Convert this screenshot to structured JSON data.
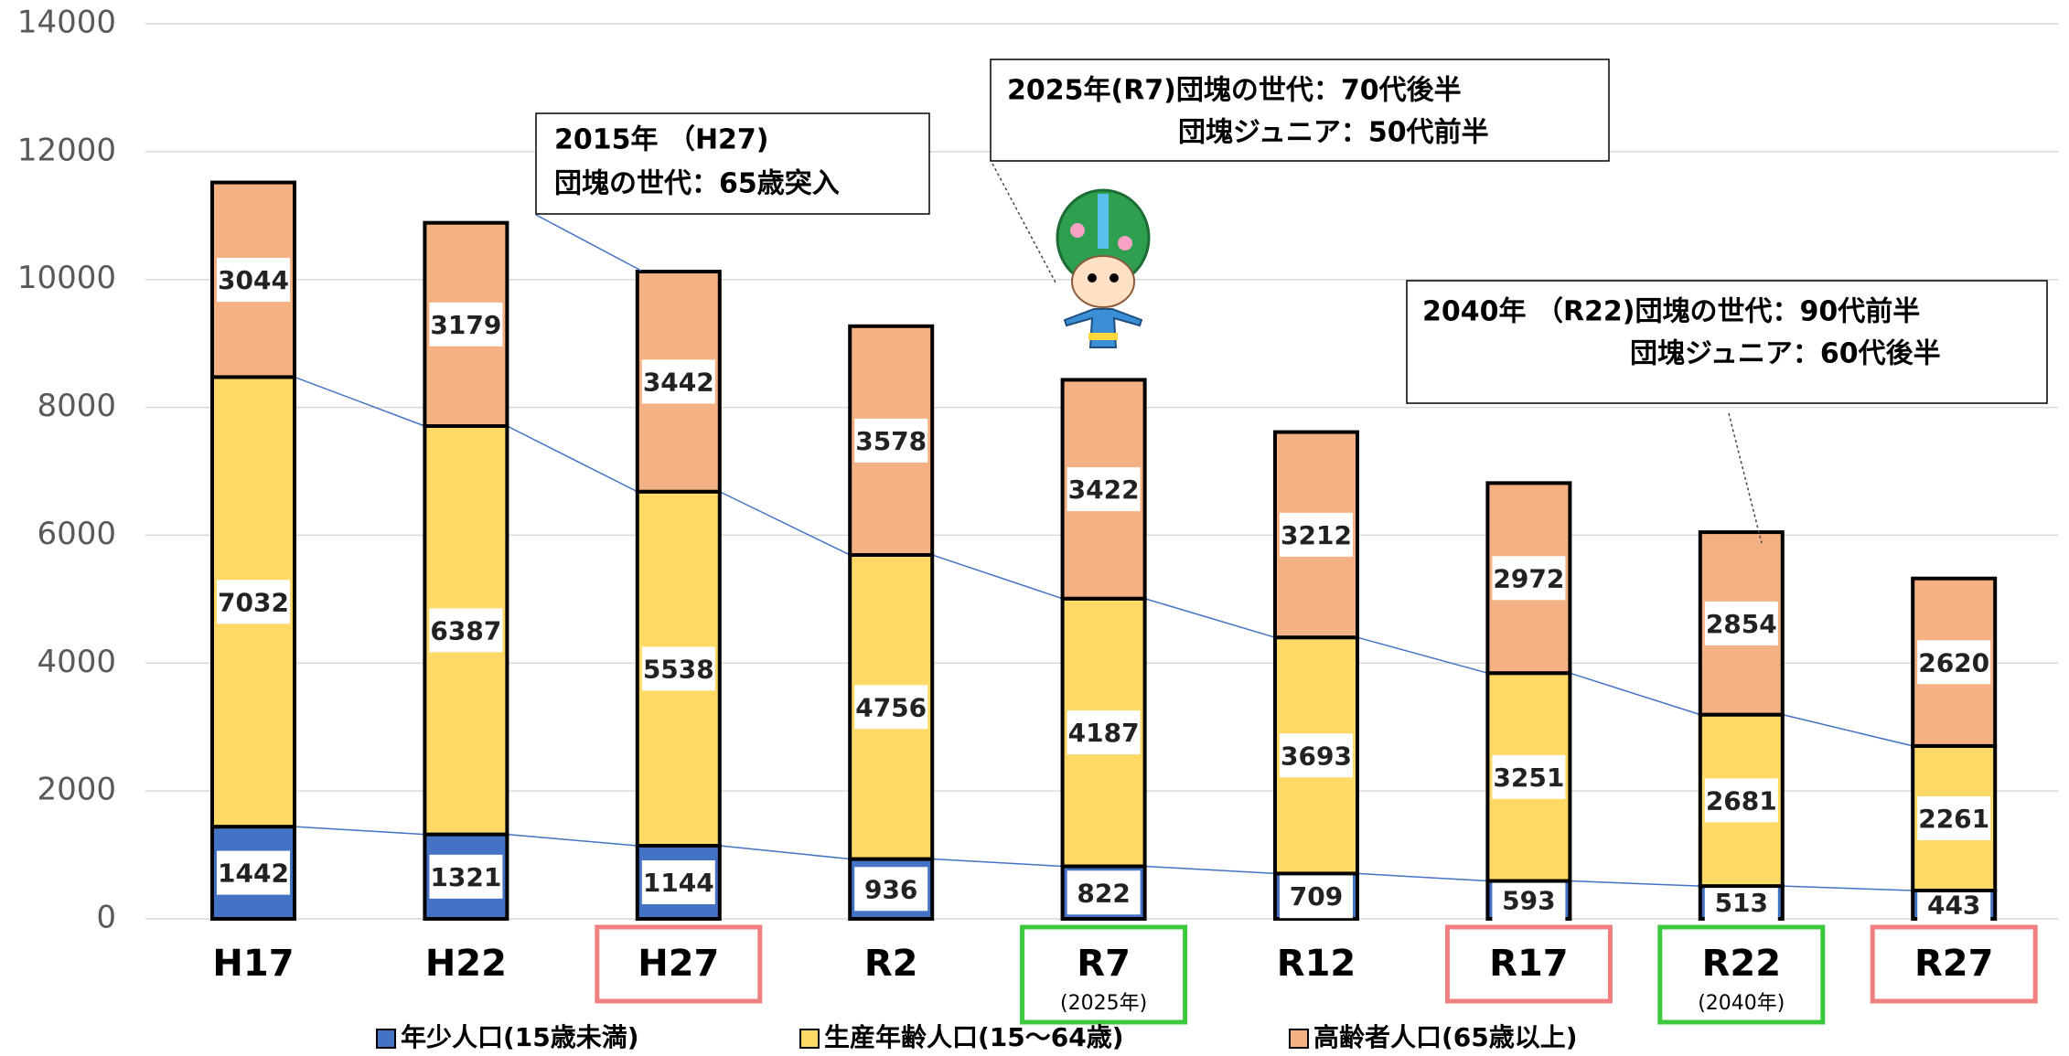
{
  "chart_data": {
    "type": "bar",
    "stacked": true,
    "categories": [
      "H17",
      "H22",
      "H27",
      "R2",
      "R7",
      "R12",
      "R17",
      "R22",
      "R27"
    ],
    "category_notes": [
      null,
      null,
      null,
      null,
      "(2025年)",
      null,
      null,
      "(2040年)",
      null
    ],
    "highlights": [
      null,
      null,
      "#f08080",
      null,
      "#3cc83c",
      null,
      "#f08080",
      "#3cc83c",
      "#f08080"
    ],
    "series": [
      {
        "name": "年少人口(15歳未満)",
        "color": "#4472c4",
        "values": [
          1442,
          1321,
          1144,
          936,
          822,
          709,
          593,
          513,
          443
        ]
      },
      {
        "name": "生産年齢人口(15～64歳)",
        "color": "#ffd966",
        "values": [
          7032,
          6387,
          5538,
          4756,
          4187,
          3693,
          3251,
          2681,
          2261
        ]
      },
      {
        "name": "高齢者人口(65歳以上)",
        "color": "#f4b183",
        "values": [
          3044,
          3179,
          3442,
          3578,
          3422,
          3212,
          2972,
          2854,
          2620
        ]
      }
    ],
    "ylim": [
      0,
      14000
    ],
    "yticks": [
      0,
      2000,
      4000,
      6000,
      8000,
      10000,
      12000,
      14000
    ],
    "grid": true,
    "series_lines": true,
    "legend": "bottom",
    "annotations": [
      [
        "2015年 （H27)",
        "団塊の世代：65歳突入"
      ],
      [
        "2025年(R7)団塊の世代：70代後半",
        "団塊ジュニア：50代前半"
      ],
      [
        "2040年 （R22)団塊の世代：90代前半",
        "団塊ジュニア：60代後半"
      ]
    ]
  }
}
